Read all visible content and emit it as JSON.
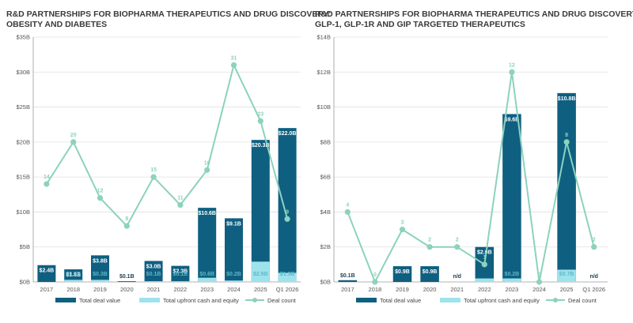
{
  "colors": {
    "total": "#0f5f80",
    "upfront": "#9ee3ec",
    "deal": "#8cd2bd",
    "grid": "#e1e1e1",
    "axis": "#9a9a9a"
  },
  "chart_data": [
    {
      "type": "bar",
      "title": "R&D PARTNERSHIPS FOR BIOPHARMA THERAPEUTICS AND DRUG DISCOVERY:",
      "subtitle": "OBESITY AND DIABETES",
      "categories": [
        "2017",
        "2018",
        "2019",
        "2020",
        "2021",
        "2022",
        "2023",
        "2024",
        "2025",
        "Q1 2026"
      ],
      "ylim": [
        0,
        35
      ],
      "yticks": [
        0,
        5,
        10,
        15,
        20,
        25,
        30,
        35
      ],
      "ytick_labels": [
        "$0B",
        "$5B",
        "$10B",
        "$15B",
        "$20B",
        "$25B",
        "$30B",
        "$35B"
      ],
      "line_ylim": [
        0,
        35
      ],
      "series": [
        {
          "name": "Total deal value",
          "values": [
            2.4,
            1.8,
            3.8,
            0.1,
            3.0,
            2.3,
            10.6,
            9.1,
            20.3,
            22.0
          ],
          "labels": [
            "$2.4B",
            "$1.8B",
            "$3.8B",
            "$0.1B",
            "$3.0B",
            "$2.3B",
            "$10.6B",
            "$9.1B",
            "$20.3B",
            "$22.0B"
          ]
        },
        {
          "name": "Total upfront cash and equity",
          "values": [
            0,
            0.3,
            0.3,
            0,
            0.1,
            0.1,
            0.6,
            0.2,
            2.9,
            1.3
          ],
          "labels": [
            "",
            "$0.3B",
            "$0.3B",
            "",
            "$0.1B",
            "$0.1B",
            "$0.6B",
            "$0.2B",
            "$2.9B",
            "$1.3B"
          ]
        },
        {
          "name": "Deal count",
          "values": [
            14,
            20,
            12,
            8,
            15,
            11,
            16,
            31,
            23,
            9
          ],
          "labels": [
            "14",
            "20",
            "12",
            "8",
            "15",
            "11",
            "16",
            "31",
            "23",
            "9"
          ]
        }
      ]
    },
    {
      "type": "bar",
      "title": "R&D PARTNERSHIPS FOR BIOPHARMA THERAPEUTICS AND DRUG DISCOVERY:",
      "subtitle": "GLP-1, GLP-1R AND GIP TARGETED THERAPEUTICS",
      "categories": [
        "2017",
        "2018",
        "2019",
        "2020",
        "2021",
        "2022",
        "2023",
        "2024",
        "2025",
        "Q1 2026"
      ],
      "ylim": [
        0,
        14
      ],
      "yticks": [
        0,
        2,
        4,
        6,
        8,
        10,
        12,
        14
      ],
      "ytick_labels": [
        "$0B",
        "$2B",
        "$4B",
        "$6B",
        "$8B",
        "$10B",
        "$12B",
        "$14B"
      ],
      "line_ylim": [
        0,
        14
      ],
      "series": [
        {
          "name": "Total deal value",
          "values": [
            0.1,
            0,
            0.9,
            0.9,
            null,
            2.0,
            9.6,
            0,
            10.8,
            null
          ],
          "labels": [
            "$0.1B",
            "",
            "$0.9B",
            "$0.9B",
            "n/d",
            "$2.0B",
            "$9.6B",
            "",
            "$10.8B",
            "n/d"
          ]
        },
        {
          "name": "Total upfront cash and equity",
          "values": [
            0,
            0,
            0,
            0,
            0,
            0.2,
            0.2,
            0,
            0.7,
            0
          ],
          "labels": [
            "",
            "",
            "",
            "",
            "",
            "",
            "$0.2B",
            "",
            "$0.7B",
            ""
          ]
        },
        {
          "name": "Deal count",
          "values": [
            4,
            0,
            3,
            2,
            2,
            1,
            12,
            0,
            8,
            2
          ],
          "labels": [
            "4",
            "0",
            "3",
            "2",
            "2",
            "1",
            "12",
            "0",
            "8",
            "2"
          ]
        }
      ]
    }
  ]
}
